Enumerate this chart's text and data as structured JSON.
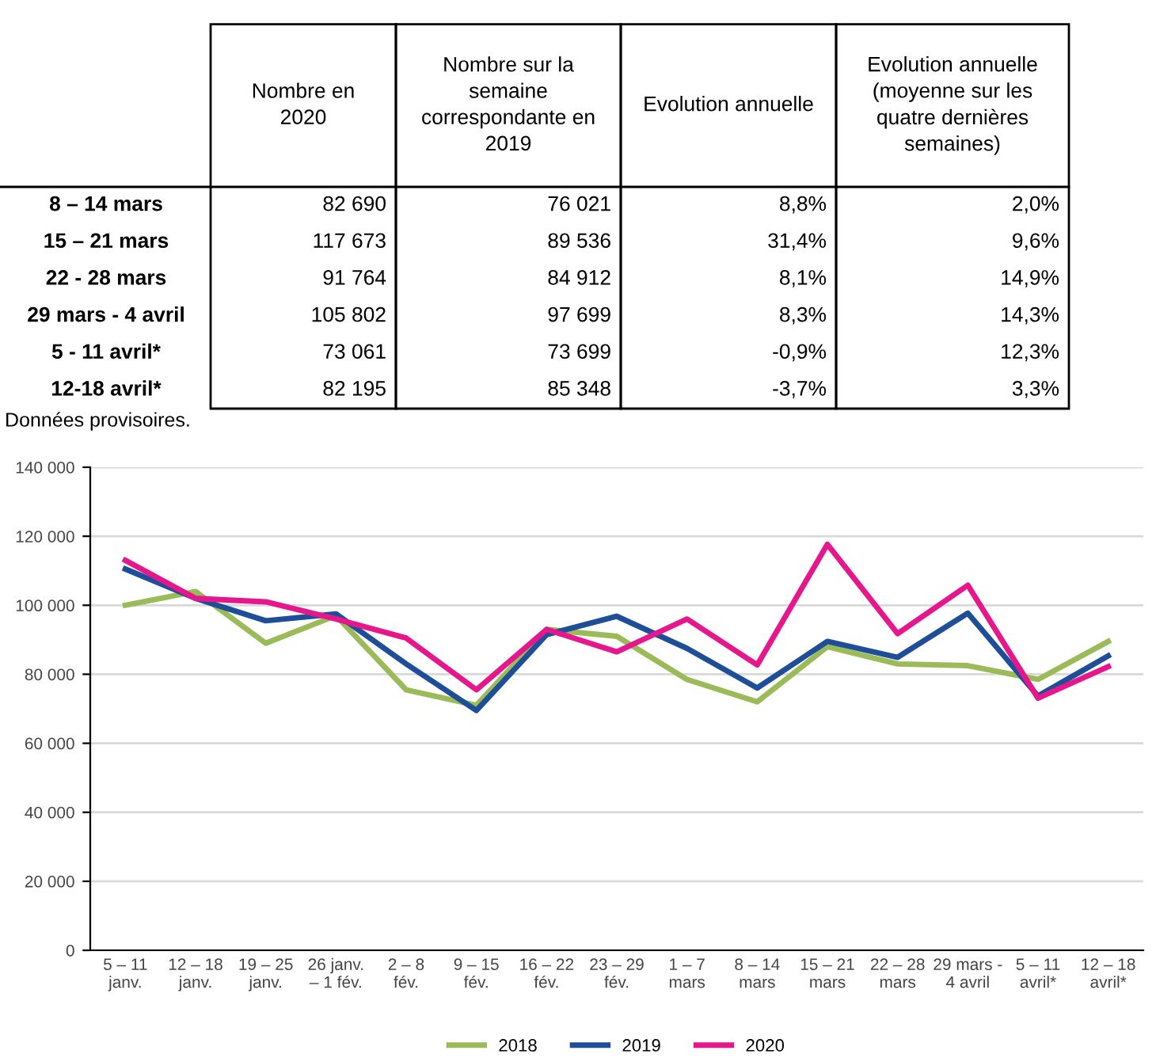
{
  "chart_data": [
    {
      "type": "heatmap",
      "categories": [
        "Nombre en\n2020",
        "Nombre sur la\nsemaine\ncorrespondante en\n2019",
        "Evolution annuelle",
        "Evolution annuelle\n(moyenne sur les\nquatre dernières\nsemaines)"
      ],
      "y_categories": [
        "8 – 14 mars",
        "15 – 21 mars",
        "22 - 28 mars",
        "29 mars - 4 avril",
        "5 - 11 avril*",
        "12-18 avril*"
      ],
      "cells": [
        [
          82690,
          76021,
          8.8,
          2.0
        ],
        [
          117673,
          89536,
          31.4,
          9.6
        ],
        [
          91764,
          84912,
          8.1,
          14.9
        ],
        [
          105802,
          97699,
          8.3,
          14.3
        ],
        [
          73061,
          73699,
          -0.9,
          12.3
        ],
        [
          82195,
          85348,
          -3.7,
          3.3
        ]
      ],
      "cell_labels": [
        [
          "82 690",
          "76 021",
          "8,8%",
          "2,0%"
        ],
        [
          "117 673",
          "89 536",
          "31,4%",
          "9,6%"
        ],
        [
          "91 764",
          "84 912",
          "8,1%",
          "14,9%"
        ],
        [
          "105 802",
          "97 699",
          "8,3%",
          "14,3%"
        ],
        [
          "73 061",
          "73 699",
          "-0,9%",
          "12,3%"
        ],
        [
          "82 195",
          "85 348",
          "-3,7%",
          "3,3%"
        ]
      ],
      "annotations": [
        "Données provisoires."
      ]
    },
    {
      "type": "line",
      "categories": [
        "5 – 11\njanv.",
        "12 – 18\njanv.",
        "19 – 25\njanv.",
        "26 janv.\n– 1 fév.",
        "2 – 8\nfév.",
        "9 – 15\nfév.",
        "16 – 22\nfév.",
        "23 – 29\nfév.",
        "1 – 7\nmars",
        "8 – 14\nmars",
        "15 – 21\nmars",
        "22 – 28\nmars",
        "29 mars -\n4 avril",
        "5 – 11\navril*",
        "12 – 18\navril*"
      ],
      "series": [
        {
          "name": "2018",
          "color": "#9bbb59",
          "values": [
            100000,
            104000,
            89000,
            97000,
            75500,
            71000,
            93000,
            91000,
            78500,
            72000,
            88000,
            83000,
            82500,
            78500,
            89500
          ]
        },
        {
          "name": "2019",
          "color": "#1f4e99",
          "values": [
            110500,
            102000,
            95500,
            97500,
            83000,
            69500,
            91500,
            96800,
            87500,
            76021,
            89536,
            84912,
            97699,
            73699,
            85348
          ]
        },
        {
          "name": "2020",
          "color": "#e6178c",
          "values": [
            113000,
            102000,
            101000,
            96000,
            90500,
            75500,
            93000,
            86500,
            96000,
            82690,
            117673,
            91764,
            105802,
            73061,
            82195
          ]
        }
      ],
      "ylim": [
        0,
        140000
      ],
      "yticks": [
        {
          "value": 0,
          "label": "0"
        },
        {
          "value": 20000,
          "label": "20 000"
        },
        {
          "value": 40000,
          "label": "40 000"
        },
        {
          "value": 60000,
          "label": "60 000"
        },
        {
          "value": 80000,
          "label": "80 000"
        },
        {
          "value": 100000,
          "label": "100 000"
        },
        {
          "value": 120000,
          "label": "120 000"
        },
        {
          "value": 140000,
          "label": "140 000"
        }
      ],
      "grid": "y",
      "legend": "bottom",
      "marker": "none",
      "line_style": "solid"
    }
  ]
}
